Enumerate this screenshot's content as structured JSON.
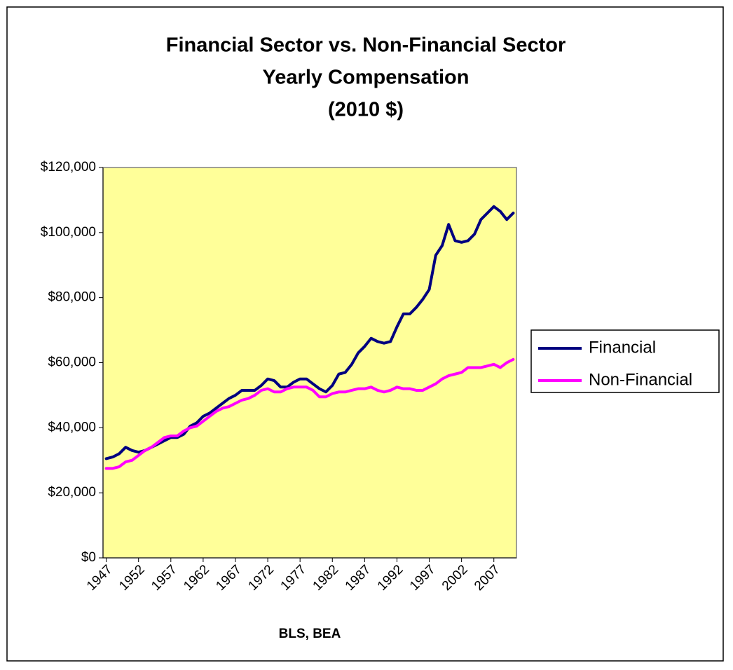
{
  "chart_data": {
    "type": "line",
    "title": [
      "Financial Sector vs. Non-Financial Sector",
      "Yearly Compensation",
      "(2010 $)"
    ],
    "xlabel": "BLS, BEA",
    "x": [
      1947,
      1948,
      1949,
      1950,
      1951,
      1952,
      1953,
      1954,
      1955,
      1956,
      1957,
      1958,
      1959,
      1960,
      1961,
      1962,
      1963,
      1964,
      1965,
      1966,
      1967,
      1968,
      1969,
      1970,
      1971,
      1972,
      1973,
      1974,
      1975,
      1976,
      1977,
      1978,
      1979,
      1980,
      1981,
      1982,
      1983,
      1984,
      1985,
      1986,
      1987,
      1988,
      1989,
      1990,
      1991,
      1992,
      1993,
      1994,
      1995,
      1996,
      1997,
      1998,
      1999,
      2000,
      2001,
      2002,
      2003,
      2004,
      2005,
      2006,
      2007,
      2008,
      2009,
      2010
    ],
    "xlim": [
      1946.5,
      2010.5
    ],
    "xticks": [
      1947,
      1952,
      1957,
      1962,
      1967,
      1972,
      1977,
      1982,
      1987,
      1992,
      1997,
      2002,
      2007
    ],
    "ylim": [
      0,
      120000
    ],
    "yticks": [
      {
        "value": 0,
        "label": "$0"
      },
      {
        "value": 20000,
        "label": "$20,000"
      },
      {
        "value": 40000,
        "label": "$40,000"
      },
      {
        "value": 60000,
        "label": "$60,000"
      },
      {
        "value": 80000,
        "label": "$80,000"
      },
      {
        "value": 100000,
        "label": "$100,000"
      },
      {
        "value": 120000,
        "label": "$120,000"
      }
    ],
    "grid": false,
    "legend": "right",
    "plot_background": "#ffff99",
    "series": [
      {
        "name": "Financial",
        "color": "#000080",
        "values": [
          30500,
          31000,
          32000,
          34000,
          33000,
          32500,
          33000,
          34000,
          35000,
          36000,
          37000,
          37000,
          38000,
          40500,
          41500,
          43500,
          44500,
          46000,
          47500,
          49000,
          50000,
          51500,
          51500,
          51500,
          53000,
          55000,
          54500,
          52500,
          52500,
          54000,
          55000,
          55000,
          53500,
          52000,
          51000,
          53000,
          56500,
          57000,
          59500,
          63000,
          65000,
          67500,
          66500,
          66000,
          66500,
          71000,
          75000,
          75000,
          77000,
          79500,
          82500,
          93000,
          96000,
          102500,
          97500,
          97000,
          97500,
          99500,
          104000,
          106000,
          108000,
          106500,
          104000,
          106000
        ]
      },
      {
        "name": "Non-Financial",
        "color": "#ff00ff",
        "values": [
          27500,
          27500,
          28000,
          29500,
          30000,
          31500,
          33000,
          34000,
          35500,
          37000,
          37500,
          37500,
          39000,
          40000,
          40500,
          42000,
          43500,
          45000,
          46000,
          46500,
          47500,
          48500,
          49000,
          50000,
          51500,
          52000,
          51000,
          51000,
          52000,
          52500,
          52500,
          52500,
          51500,
          49500,
          49500,
          50500,
          51000,
          51000,
          51500,
          52000,
          52000,
          52500,
          51500,
          51000,
          51500,
          52500,
          52000,
          52000,
          51500,
          51500,
          52500,
          53500,
          55000,
          56000,
          56500,
          57000,
          58500,
          58500,
          58500,
          59000,
          59500,
          58500,
          60000,
          61000
        ]
      }
    ]
  }
}
